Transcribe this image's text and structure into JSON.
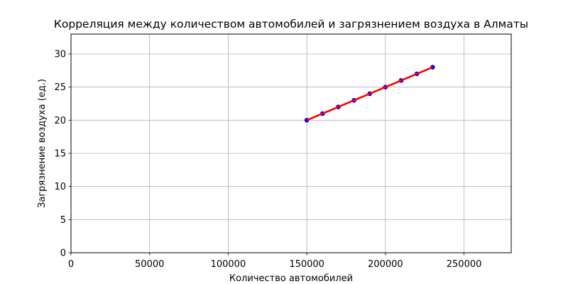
{
  "chart_data": {
    "type": "scatter",
    "title": "Корреляция между количеством автомобилей и загрязнением воздуха в Алматы",
    "xlabel": "Количество автомобилей",
    "ylabel": "Загрязнение воздуха (ед.)",
    "xlim": [
      0,
      280000
    ],
    "ylim": [
      0,
      33
    ],
    "xticks": [
      0,
      50000,
      100000,
      150000,
      200000,
      250000
    ],
    "yticks": [
      0,
      5,
      10,
      15,
      20,
      25,
      30
    ],
    "grid": true,
    "series": [
      {
        "type": "scatter",
        "color": "#0000ff",
        "x": [
          150000,
          160000,
          170000,
          180000,
          190000,
          200000,
          210000,
          220000,
          230000
        ],
        "y": [
          20,
          21,
          22,
          23,
          24,
          25,
          26,
          27,
          28
        ]
      },
      {
        "type": "line",
        "color": "#ff0000",
        "x": [
          150000,
          230000
        ],
        "y": [
          20,
          28
        ]
      }
    ]
  }
}
